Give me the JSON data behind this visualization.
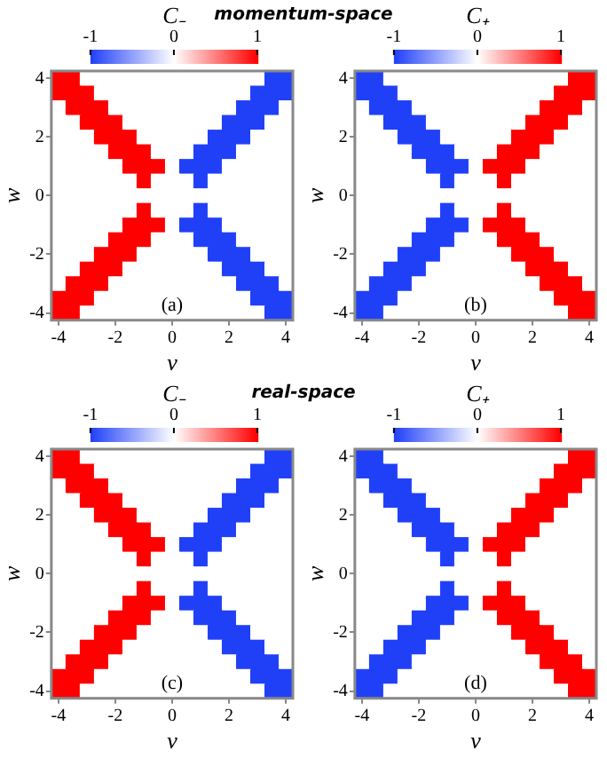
{
  "chart_data": [
    {
      "type": "heatmap",
      "subtitle": "momentum-space",
      "clabel": "C₋",
      "xlabel": "v",
      "ylabel": "w",
      "annotations": [
        "(a)"
      ],
      "clim": [
        -1,
        1
      ],
      "cticks": [
        -1,
        0,
        1
      ],
      "categories": [
        "-4",
        null,
        null,
        null,
        "-2",
        null,
        null,
        null,
        "0",
        null,
        null,
        null,
        "2",
        null,
        null,
        null,
        "4"
      ],
      "y_categories": [
        "4",
        null,
        null,
        null,
        "2",
        null,
        null,
        null,
        "0",
        null,
        null,
        null,
        "-2",
        null,
        null,
        null,
        "-4"
      ],
      "cells": [
        [
          1,
          1,
          0,
          0,
          0,
          0,
          0,
          0,
          0,
          0,
          0,
          0,
          0,
          0,
          0,
          -1,
          -1
        ],
        [
          1,
          1,
          1,
          0,
          0,
          0,
          0,
          0,
          0,
          0,
          0,
          0,
          0,
          0,
          -1,
          -1,
          -1
        ],
        [
          0,
          1,
          1,
          1,
          0,
          0,
          0,
          0,
          0,
          0,
          0,
          0,
          0,
          -1,
          -1,
          -1,
          0
        ],
        [
          0,
          0,
          1,
          1,
          1,
          0,
          0,
          0,
          0,
          0,
          0,
          0,
          -1,
          -1,
          -1,
          0,
          0
        ],
        [
          0,
          0,
          0,
          1,
          1,
          1,
          0,
          0,
          0,
          0,
          0,
          -1,
          -1,
          -1,
          0,
          0,
          0
        ],
        [
          0,
          0,
          0,
          0,
          1,
          1,
          1,
          0,
          0,
          0,
          -1,
          -1,
          -1,
          0,
          0,
          0,
          0
        ],
        [
          0,
          0,
          0,
          0,
          0,
          1,
          1,
          1,
          0,
          -1,
          -1,
          -1,
          0,
          0,
          0,
          0,
          0
        ],
        [
          0,
          0,
          0,
          0,
          0,
          0,
          1,
          0,
          0,
          0,
          -1,
          0,
          0,
          0,
          0,
          0,
          0
        ],
        [
          0,
          0,
          0,
          0,
          0,
          0,
          0,
          0,
          0,
          0,
          0,
          0,
          0,
          0,
          0,
          0,
          0
        ],
        [
          0,
          0,
          0,
          0,
          0,
          0,
          1,
          0,
          0,
          0,
          -1,
          0,
          0,
          0,
          0,
          0,
          0
        ],
        [
          0,
          0,
          0,
          0,
          0,
          1,
          1,
          1,
          0,
          -1,
          -1,
          -1,
          0,
          0,
          0,
          0,
          0
        ],
        [
          0,
          0,
          0,
          0,
          1,
          1,
          1,
          0,
          0,
          0,
          -1,
          -1,
          -1,
          0,
          0,
          0,
          0
        ],
        [
          0,
          0,
          0,
          1,
          1,
          1,
          0,
          0,
          0,
          0,
          0,
          -1,
          -1,
          -1,
          0,
          0,
          0
        ],
        [
          0,
          0,
          1,
          1,
          1,
          0,
          0,
          0,
          0,
          0,
          0,
          0,
          -1,
          -1,
          -1,
          0,
          0
        ],
        [
          0,
          1,
          1,
          1,
          0,
          0,
          0,
          0,
          0,
          0,
          0,
          0,
          0,
          -1,
          -1,
          -1,
          0
        ],
        [
          1,
          1,
          1,
          0,
          0,
          0,
          0,
          0,
          0,
          0,
          0,
          0,
          0,
          0,
          -1,
          -1,
          -1
        ],
        [
          1,
          1,
          0,
          0,
          0,
          0,
          0,
          0,
          0,
          0,
          0,
          0,
          0,
          0,
          0,
          -1,
          -1
        ]
      ]
    },
    {
      "type": "heatmap",
      "clabel": "C₊",
      "xlabel": "v",
      "ylabel": "w",
      "annotations": [
        "(b)"
      ],
      "clim": [
        -1,
        1
      ],
      "cticks": [
        -1,
        0,
        1
      ],
      "categories": [
        "-4",
        null,
        null,
        null,
        "-2",
        null,
        null,
        null,
        "0",
        null,
        null,
        null,
        "2",
        null,
        null,
        null,
        "4"
      ],
      "y_categories": [
        "4",
        null,
        null,
        null,
        "2",
        null,
        null,
        null,
        "0",
        null,
        null,
        null,
        "-2",
        null,
        null,
        null,
        "-4"
      ],
      "cells": [
        [
          -1,
          -1,
          0,
          0,
          0,
          0,
          0,
          0,
          0,
          0,
          0,
          0,
          0,
          0,
          0,
          1,
          1
        ],
        [
          -1,
          -1,
          -1,
          0,
          0,
          0,
          0,
          0,
          0,
          0,
          0,
          0,
          0,
          0,
          1,
          1,
          1
        ],
        [
          0,
          -1,
          -1,
          -1,
          0,
          0,
          0,
          0,
          0,
          0,
          0,
          0,
          0,
          1,
          1,
          1,
          0
        ],
        [
          0,
          0,
          -1,
          -1,
          -1,
          0,
          0,
          0,
          0,
          0,
          0,
          0,
          1,
          1,
          1,
          0,
          0
        ],
        [
          0,
          0,
          0,
          -1,
          -1,
          -1,
          0,
          0,
          0,
          0,
          0,
          1,
          1,
          1,
          0,
          0,
          0
        ],
        [
          0,
          0,
          0,
          0,
          -1,
          -1,
          -1,
          0,
          0,
          0,
          1,
          1,
          1,
          0,
          0,
          0,
          0
        ],
        [
          0,
          0,
          0,
          0,
          0,
          -1,
          -1,
          -1,
          0,
          1,
          1,
          1,
          0,
          0,
          0,
          0,
          0
        ],
        [
          0,
          0,
          0,
          0,
          0,
          0,
          -1,
          0,
          0,
          0,
          1,
          0,
          0,
          0,
          0,
          0,
          0
        ],
        [
          0,
          0,
          0,
          0,
          0,
          0,
          0,
          0,
          0,
          0,
          0,
          0,
          0,
          0,
          0,
          0,
          0
        ],
        [
          0,
          0,
          0,
          0,
          0,
          0,
          -1,
          0,
          0,
          0,
          1,
          0,
          0,
          0,
          0,
          0,
          0
        ],
        [
          0,
          0,
          0,
          0,
          0,
          -1,
          -1,
          -1,
          0,
          1,
          1,
          1,
          0,
          0,
          0,
          0,
          0
        ],
        [
          0,
          0,
          0,
          0,
          -1,
          -1,
          -1,
          0,
          0,
          0,
          1,
          1,
          1,
          0,
          0,
          0,
          0
        ],
        [
          0,
          0,
          0,
          -1,
          -1,
          -1,
          0,
          0,
          0,
          0,
          0,
          1,
          1,
          1,
          0,
          0,
          0
        ],
        [
          0,
          0,
          -1,
          -1,
          -1,
          0,
          0,
          0,
          0,
          0,
          0,
          0,
          1,
          1,
          1,
          0,
          0
        ],
        [
          0,
          -1,
          -1,
          -1,
          0,
          0,
          0,
          0,
          0,
          0,
          0,
          0,
          0,
          1,
          1,
          1,
          0
        ],
        [
          -1,
          -1,
          -1,
          0,
          0,
          0,
          0,
          0,
          0,
          0,
          0,
          0,
          0,
          0,
          1,
          1,
          1
        ],
        [
          -1,
          -1,
          0,
          0,
          0,
          0,
          0,
          0,
          0,
          0,
          0,
          0,
          0,
          0,
          0,
          1,
          1
        ]
      ]
    },
    {
      "type": "heatmap",
      "subtitle": "real-space",
      "clabel": "C₋",
      "xlabel": "v",
      "ylabel": "w",
      "annotations": [
        "(c)"
      ],
      "clim": [
        -1,
        1
      ],
      "cticks": [
        -1,
        0,
        1
      ],
      "categories": [
        "-4",
        null,
        null,
        null,
        "-2",
        null,
        null,
        null,
        "0",
        null,
        null,
        null,
        "2",
        null,
        null,
        null,
        "4"
      ],
      "y_categories": [
        "4",
        null,
        null,
        null,
        "2",
        null,
        null,
        null,
        "0",
        null,
        null,
        null,
        "-2",
        null,
        null,
        null,
        "-4"
      ],
      "cells": [
        [
          1,
          1,
          0,
          0,
          0,
          0,
          0,
          0,
          0,
          0,
          0,
          0,
          0,
          0,
          0,
          -1,
          -1
        ],
        [
          1,
          1,
          1,
          0,
          0,
          0,
          0,
          0,
          0,
          0,
          0,
          0,
          0,
          0,
          -1,
          -1,
          -1
        ],
        [
          0,
          1,
          1,
          1,
          0,
          0,
          0,
          0,
          0,
          0,
          0,
          0,
          0,
          -1,
          -1,
          -1,
          0
        ],
        [
          0,
          0,
          1,
          1,
          1,
          0,
          0,
          0,
          0,
          0,
          0,
          0,
          -1,
          -1,
          -1,
          0,
          0
        ],
        [
          0,
          0,
          0,
          1,
          1,
          1,
          0,
          0,
          0,
          0,
          0,
          -1,
          -1,
          -1,
          0,
          0,
          0
        ],
        [
          0,
          0,
          0,
          0,
          1,
          1,
          1,
          0,
          0,
          0,
          -1,
          -1,
          -1,
          0,
          0,
          0,
          0
        ],
        [
          0,
          0,
          0,
          0,
          0,
          1,
          1,
          1,
          0,
          -1,
          -1,
          -1,
          0,
          0,
          0,
          0,
          0
        ],
        [
          0,
          0,
          0,
          0,
          0,
          0,
          1,
          0,
          0,
          0,
          -1,
          0,
          0,
          0,
          0,
          0,
          0
        ],
        [
          0,
          0,
          0,
          0,
          0,
          0,
          0,
          0,
          0,
          0,
          0,
          0,
          0,
          0,
          0,
          0,
          0
        ],
        [
          0,
          0,
          0,
          0,
          0,
          0,
          1,
          0,
          0,
          0,
          -1,
          0,
          0,
          0,
          0,
          0,
          0
        ],
        [
          0,
          0,
          0,
          0,
          0,
          1,
          1,
          1,
          0,
          -1,
          -1,
          -1,
          0,
          0,
          0,
          0,
          0
        ],
        [
          0,
          0,
          0,
          0,
          1,
          1,
          1,
          0,
          0,
          0,
          -1,
          -1,
          -1,
          0,
          0,
          0,
          0
        ],
        [
          0,
          0,
          0,
          1,
          1,
          1,
          0,
          0,
          0,
          0,
          0,
          -1,
          -1,
          -1,
          0,
          0,
          0
        ],
        [
          0,
          0,
          1,
          1,
          1,
          0,
          0,
          0,
          0,
          0,
          0,
          0,
          -1,
          -1,
          -1,
          0,
          0
        ],
        [
          0,
          1,
          1,
          1,
          0,
          0,
          0,
          0,
          0,
          0,
          0,
          0,
          0,
          -1,
          -1,
          -1,
          0
        ],
        [
          1,
          1,
          1,
          0,
          0,
          0,
          0,
          0,
          0,
          0,
          0,
          0,
          0,
          0,
          -1,
          -1,
          -1
        ],
        [
          1,
          1,
          0,
          0,
          0,
          0,
          0,
          0,
          0,
          0,
          0,
          0,
          0,
          0,
          0,
          -1,
          -1
        ]
      ]
    },
    {
      "type": "heatmap",
      "clabel": "C₊",
      "xlabel": "v",
      "ylabel": "w",
      "annotations": [
        "(d)"
      ],
      "clim": [
        -1,
        1
      ],
      "cticks": [
        -1,
        0,
        1
      ],
      "categories": [
        "-4",
        null,
        null,
        null,
        "-2",
        null,
        null,
        null,
        "0",
        null,
        null,
        null,
        "2",
        null,
        null,
        null,
        "4"
      ],
      "y_categories": [
        "4",
        null,
        null,
        null,
        "2",
        null,
        null,
        null,
        "0",
        null,
        null,
        null,
        "-2",
        null,
        null,
        null,
        "-4"
      ],
      "cells": [
        [
          -1,
          -1,
          0,
          0,
          0,
          0,
          0,
          0,
          0,
          0,
          0,
          0,
          0,
          0,
          0,
          1,
          1
        ],
        [
          -1,
          -1,
          -1,
          0,
          0,
          0,
          0,
          0,
          0,
          0,
          0,
          0,
          0,
          0,
          1,
          1,
          1
        ],
        [
          0,
          -1,
          -1,
          -1,
          0,
          0,
          0,
          0,
          0,
          0,
          0,
          0,
          0,
          1,
          1,
          1,
          0
        ],
        [
          0,
          0,
          -1,
          -1,
          -1,
          0,
          0,
          0,
          0,
          0,
          0,
          0,
          1,
          1,
          1,
          0,
          0
        ],
        [
          0,
          0,
          0,
          -1,
          -1,
          -1,
          0,
          0,
          0,
          0,
          0,
          1,
          1,
          1,
          0,
          0,
          0
        ],
        [
          0,
          0,
          0,
          0,
          -1,
          -1,
          -1,
          0,
          0,
          0,
          1,
          1,
          1,
          0,
          0,
          0,
          0
        ],
        [
          0,
          0,
          0,
          0,
          0,
          -1,
          -1,
          -1,
          0,
          1,
          1,
          1,
          0,
          0,
          0,
          0,
          0
        ],
        [
          0,
          0,
          0,
          0,
          0,
          0,
          -1,
          0,
          0,
          0,
          1,
          0,
          0,
          0,
          0,
          0,
          0
        ],
        [
          0,
          0,
          0,
          0,
          0,
          0,
          0,
          0,
          0,
          0,
          0,
          0,
          0,
          0,
          0,
          0,
          0
        ],
        [
          0,
          0,
          0,
          0,
          0,
          0,
          -1,
          0,
          0,
          0,
          1,
          0,
          0,
          0,
          0,
          0,
          0
        ],
        [
          0,
          0,
          0,
          0,
          0,
          -1,
          -1,
          -1,
          0,
          1,
          1,
          1,
          0,
          0,
          0,
          0,
          0
        ],
        [
          0,
          0,
          0,
          0,
          -1,
          -1,
          -1,
          0,
          0,
          0,
          1,
          1,
          1,
          0,
          0,
          0,
          0
        ],
        [
          0,
          0,
          0,
          -1,
          -1,
          -1,
          0,
          0,
          0,
          0,
          0,
          1,
          1,
          1,
          0,
          0,
          0
        ],
        [
          0,
          0,
          -1,
          -1,
          -1,
          0,
          0,
          0,
          0,
          0,
          0,
          0,
          1,
          1,
          1,
          0,
          0
        ],
        [
          0,
          -1,
          -1,
          -1,
          0,
          0,
          0,
          0,
          0,
          0,
          0,
          0,
          0,
          1,
          1,
          1,
          0
        ],
        [
          -1,
          -1,
          -1,
          0,
          0,
          0,
          0,
          0,
          0,
          0,
          0,
          0,
          0,
          0,
          1,
          1,
          1
        ],
        [
          -1,
          -1,
          0,
          0,
          0,
          0,
          0,
          0,
          0,
          0,
          0,
          0,
          0,
          0,
          0,
          1,
          1
        ]
      ]
    }
  ]
}
